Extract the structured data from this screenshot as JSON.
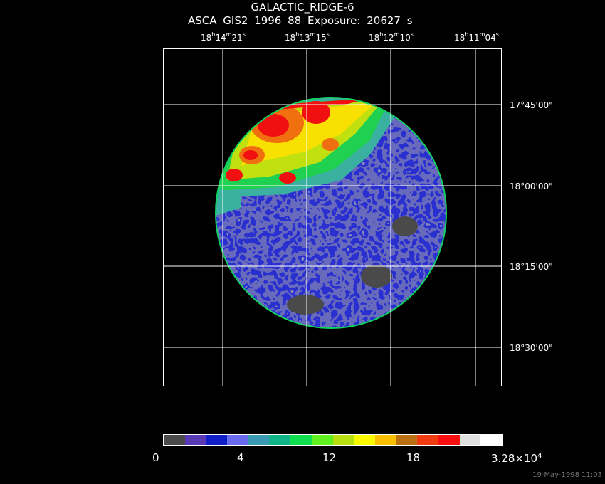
{
  "header": {
    "title": "GALACTIC_RIDGE-6",
    "subtitle": "ASCA GIS2    1996      88     Exposure: 20627  s"
  },
  "ra_ticks": [
    {
      "h": "18",
      "m": "14",
      "s": "21"
    },
    {
      "h": "18",
      "m": "13",
      "s": "15"
    },
    {
      "h": "18",
      "m": "12",
      "s": "10"
    },
    {
      "h": "18",
      "m": "11",
      "s": "04"
    }
  ],
  "dec_ticks": [
    "17°45'00\"",
    "18°00'00\"",
    "18°15'00\"",
    "18°30'00\""
  ],
  "colorbar": {
    "labels": [
      "0",
      "4",
      "12",
      "18"
    ],
    "max_label": "3.28×10",
    "max_exp": "4",
    "colors": [
      "#4a4a4a",
      "#5a3ab4",
      "#1020c8",
      "#6a6aee",
      "#3a9ab4",
      "#10b488",
      "#10e050",
      "#60f020",
      "#b8e010",
      "#f8f800",
      "#f8c000",
      "#b87010",
      "#f03a10",
      "#f81010",
      "#e0e0e0",
      "#ffffff"
    ]
  },
  "timestamp": "19-May-1998 11:03"
}
